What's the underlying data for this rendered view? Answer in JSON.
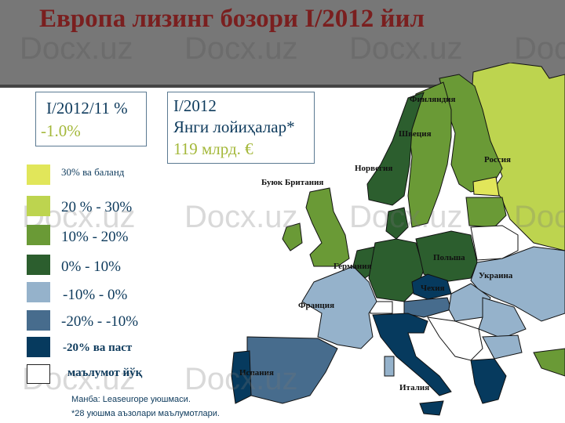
{
  "title": "Европа лизинг бозори I/2012 йил",
  "watermark": "Docx.uz",
  "box_growth": {
    "period": "I/2012/11 %",
    "value": "-1.0%"
  },
  "box_new": {
    "period": "I/2012",
    "label": "Янги лойиҳалар*",
    "value": "119 млрд. €"
  },
  "legend": [
    {
      "label": "30% ва баланд",
      "color": "#e1e65a"
    },
    {
      "label": "20 % - 30%",
      "color": "#bdd44f"
    },
    {
      "label": "10% - 20%",
      "color": "#6a9a36"
    },
    {
      "label": "0% - 10%",
      "color": "#2c5e2e"
    },
    {
      "label": "-10% - 0%",
      "color": "#95b2cb"
    },
    {
      "label": "-20% - -10%",
      "color": "#476c8d"
    },
    {
      "label": "-20% ва паст",
      "color": "#063a5e"
    },
    {
      "label": "маълумот йўқ",
      "color": "#ffffff"
    }
  ],
  "source": "Манба: Leaseurope уюшмаси.",
  "footnote": "*28  уюшма аъзолари маълумотлари.",
  "countries": [
    {
      "label": "Финляндия",
      "color": "#6a9a36"
    },
    {
      "label": "Швеция",
      "color": "#6a9a36"
    },
    {
      "label": "Норвегия",
      "color": "#2c5e2e"
    },
    {
      "label": "Россия",
      "color": "#bdd44f"
    },
    {
      "label": "Буюк Британия",
      "color": "#6a9a36"
    },
    {
      "label": "Германия",
      "color": "#2c5e2e"
    },
    {
      "label": "Польша",
      "color": "#2c5e2e"
    },
    {
      "label": "Украина",
      "color": "#95b2cb"
    },
    {
      "label": "Чехия",
      "color": "#063a5e"
    },
    {
      "label": "Франция",
      "color": "#95b2cb"
    },
    {
      "label": "Испания",
      "color": "#476c8d"
    },
    {
      "label": "Италия",
      "color": "#063a5e"
    }
  ]
}
